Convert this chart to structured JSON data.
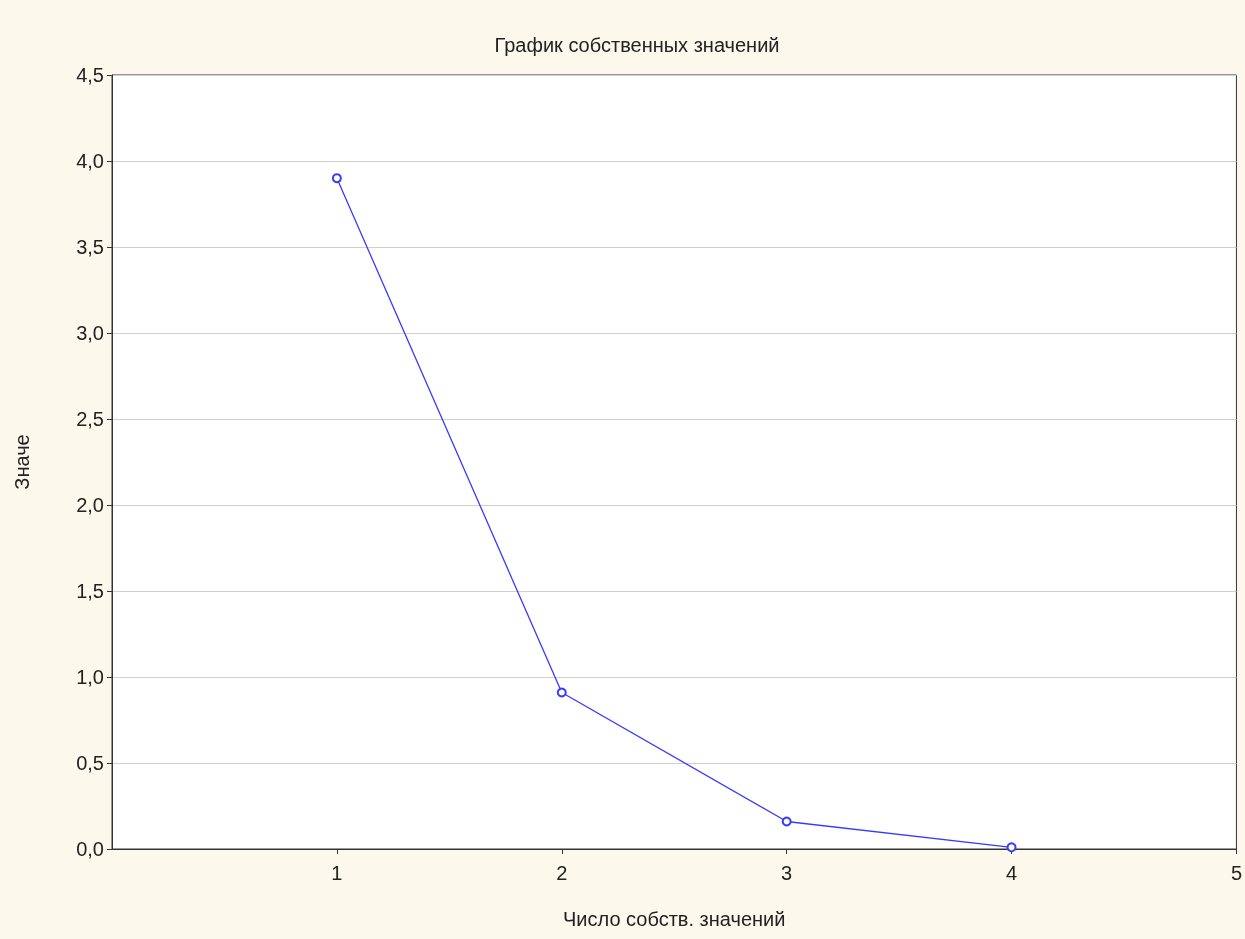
{
  "chart_data": {
    "type": "line",
    "title": "График собственных значений",
    "xlabel": "Число собств. значений",
    "ylabel": "Значе",
    "x": [
      1,
      2,
      3,
      4
    ],
    "series": [
      {
        "color": "#3a3aff",
        "values": [
          3.9,
          0.91,
          0.16,
          0.01
        ]
      }
    ],
    "xlim": [
      0,
      5
    ],
    "xticks": [
      1,
      2,
      3,
      4,
      5
    ],
    "ylim": [
      0,
      4.5
    ],
    "yticks": [
      {
        "value": 0,
        "label": "0,0"
      },
      {
        "value": 0.5,
        "label": "0,5"
      },
      {
        "value": 1,
        "label": "1,0"
      },
      {
        "value": 1.5,
        "label": "1,5"
      },
      {
        "value": 2,
        "label": "2,0"
      },
      {
        "value": 2.5,
        "label": "2,5"
      },
      {
        "value": 3,
        "label": "3,0"
      },
      {
        "value": 3.5,
        "label": "3,5"
      },
      {
        "value": 4,
        "label": "4,0"
      },
      {
        "value": 4.5,
        "label": "4,5"
      }
    ],
    "grid": "y",
    "marker": "circle",
    "line_style": "solid"
  }
}
